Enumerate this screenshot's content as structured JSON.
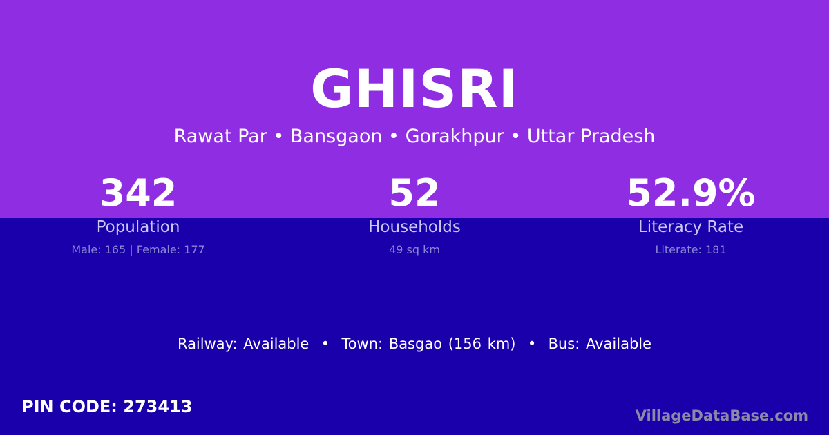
{
  "village": "GHISRI",
  "location": "Rawat Par • Bansgaon • Gorakhpur • Uttar Pradesh",
  "stats": [
    {
      "value": "342",
      "label": "Population",
      "detail": "Male: 165 | Female: 177"
    },
    {
      "value": "52",
      "label": "Households",
      "detail": "49 sq km"
    },
    {
      "value": "52.9%",
      "label": "Literacy Rate",
      "detail": "Literate: 181"
    }
  ],
  "amenities": "Railway: Available  •  Town: Basgao (156 km)  •  Bus: Available",
  "pin": "PIN CODE: 273413",
  "brand": "VillageDataBase.com",
  "colors": {
    "top": "#8e2de2",
    "bottom": "#1a00aa"
  }
}
